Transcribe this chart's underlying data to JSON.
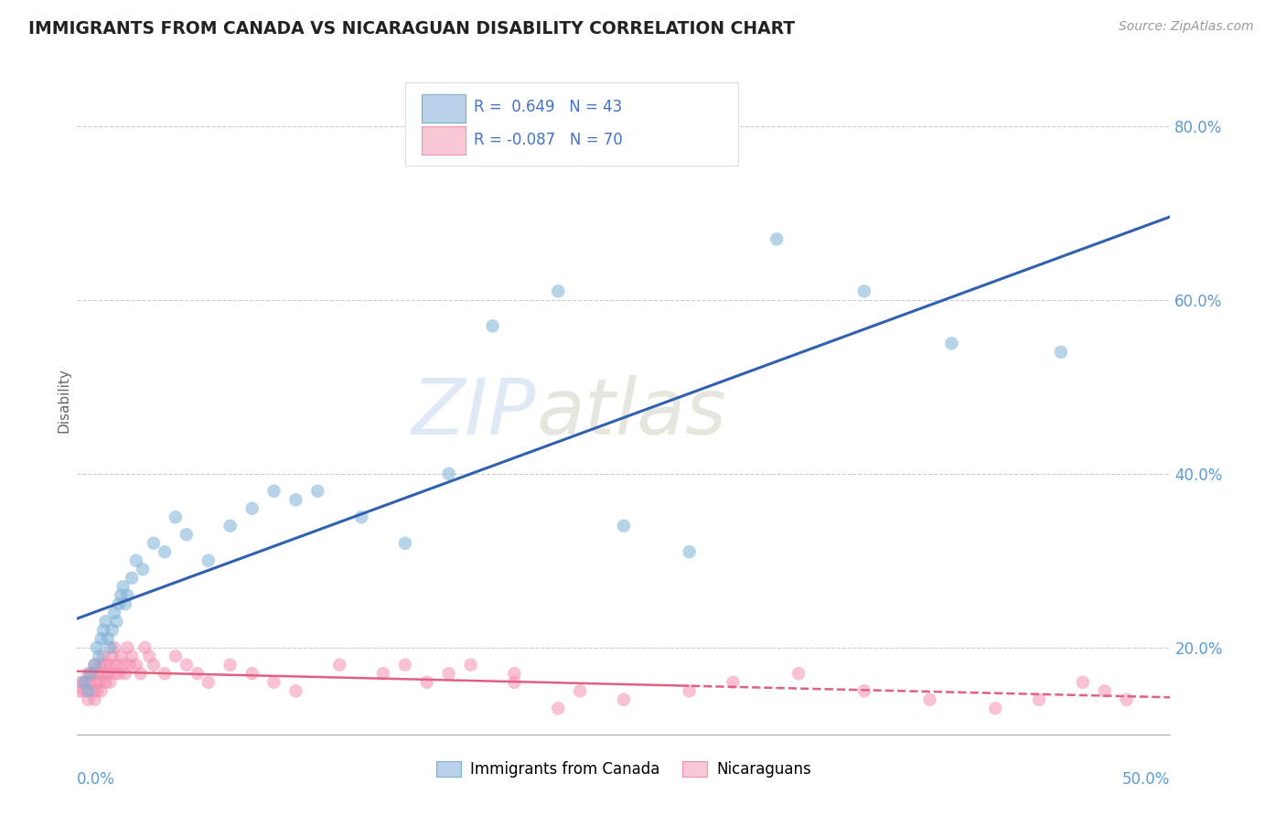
{
  "title": "IMMIGRANTS FROM CANADA VS NICARAGUAN DISABILITY CORRELATION CHART",
  "source": "Source: ZipAtlas.com",
  "ylabel": "Disability",
  "xlim": [
    0.0,
    50.0
  ],
  "ylim": [
    10.0,
    87.0
  ],
  "y_ticks": [
    20.0,
    40.0,
    60.0,
    80.0
  ],
  "blue_color": "#7bafd4",
  "pink_color": "#f48fb1",
  "blue_fill": "#b8d0e8",
  "pink_fill": "#f8c8d4",
  "blue_line_color": "#3060b0",
  "pink_line_color": "#e06080",
  "blue_r": 0.649,
  "blue_n": 43,
  "pink_r": -0.087,
  "pink_n": 70,
  "blue_scatter_x": [
    0.3,
    0.5,
    0.6,
    0.8,
    0.9,
    1.0,
    1.1,
    1.2,
    1.3,
    1.4,
    1.5,
    1.6,
    1.7,
    1.8,
    1.9,
    2.0,
    2.1,
    2.2,
    2.3,
    2.5,
    2.7,
    3.0,
    3.5,
    4.0,
    4.5,
    5.0,
    6.0,
    7.0,
    8.0,
    9.0,
    10.0,
    11.0,
    13.0,
    15.0,
    17.0,
    19.0,
    22.0,
    25.0,
    28.0,
    32.0,
    36.0,
    40.0,
    45.0
  ],
  "blue_scatter_y": [
    16.0,
    15.0,
    17.0,
    18.0,
    20.0,
    19.0,
    21.0,
    22.0,
    23.0,
    21.0,
    20.0,
    22.0,
    24.0,
    23.0,
    25.0,
    26.0,
    27.0,
    25.0,
    26.0,
    28.0,
    30.0,
    29.0,
    32.0,
    31.0,
    35.0,
    33.0,
    30.0,
    34.0,
    36.0,
    38.0,
    37.0,
    38.0,
    35.0,
    32.0,
    40.0,
    57.0,
    61.0,
    34.0,
    31.0,
    67.0,
    61.0,
    55.0,
    54.0
  ],
  "pink_scatter_x": [
    0.1,
    0.2,
    0.3,
    0.4,
    0.5,
    0.5,
    0.6,
    0.7,
    0.7,
    0.8,
    0.8,
    0.9,
    0.9,
    1.0,
    1.0,
    1.1,
    1.1,
    1.2,
    1.2,
    1.3,
    1.3,
    1.4,
    1.5,
    1.5,
    1.6,
    1.7,
    1.7,
    1.8,
    1.9,
    2.0,
    2.1,
    2.2,
    2.3,
    2.4,
    2.5,
    2.7,
    2.9,
    3.1,
    3.3,
    3.5,
    4.0,
    4.5,
    5.0,
    5.5,
    6.0,
    7.0,
    8.0,
    9.0,
    10.0,
    12.0,
    14.0,
    16.0,
    18.0,
    20.0,
    22.0,
    25.0,
    28.0,
    30.0,
    33.0,
    36.0,
    39.0,
    42.0,
    44.0,
    46.0,
    47.0,
    48.0,
    20.0,
    23.0,
    17.0,
    15.0
  ],
  "pink_scatter_y": [
    15.0,
    16.0,
    15.0,
    16.0,
    14.0,
    17.0,
    16.0,
    15.0,
    17.0,
    14.0,
    18.0,
    16.0,
    15.0,
    17.0,
    16.0,
    18.0,
    15.0,
    19.0,
    17.0,
    18.0,
    16.0,
    17.0,
    18.0,
    16.0,
    19.0,
    20.0,
    17.0,
    18.0,
    17.0,
    19.0,
    18.0,
    17.0,
    20.0,
    18.0,
    19.0,
    18.0,
    17.0,
    20.0,
    19.0,
    18.0,
    17.0,
    19.0,
    18.0,
    17.0,
    16.0,
    18.0,
    17.0,
    16.0,
    15.0,
    18.0,
    17.0,
    16.0,
    18.0,
    17.0,
    13.0,
    14.0,
    15.0,
    16.0,
    17.0,
    15.0,
    14.0,
    13.0,
    14.0,
    16.0,
    15.0,
    14.0,
    16.0,
    15.0,
    17.0,
    18.0
  ],
  "watermark_zip": "ZIP",
  "watermark_atlas": "atlas",
  "background_color": "#ffffff",
  "grid_color": "#cccccc",
  "legend_text_color": "#4472c4",
  "tick_color": "#5b9bd5"
}
